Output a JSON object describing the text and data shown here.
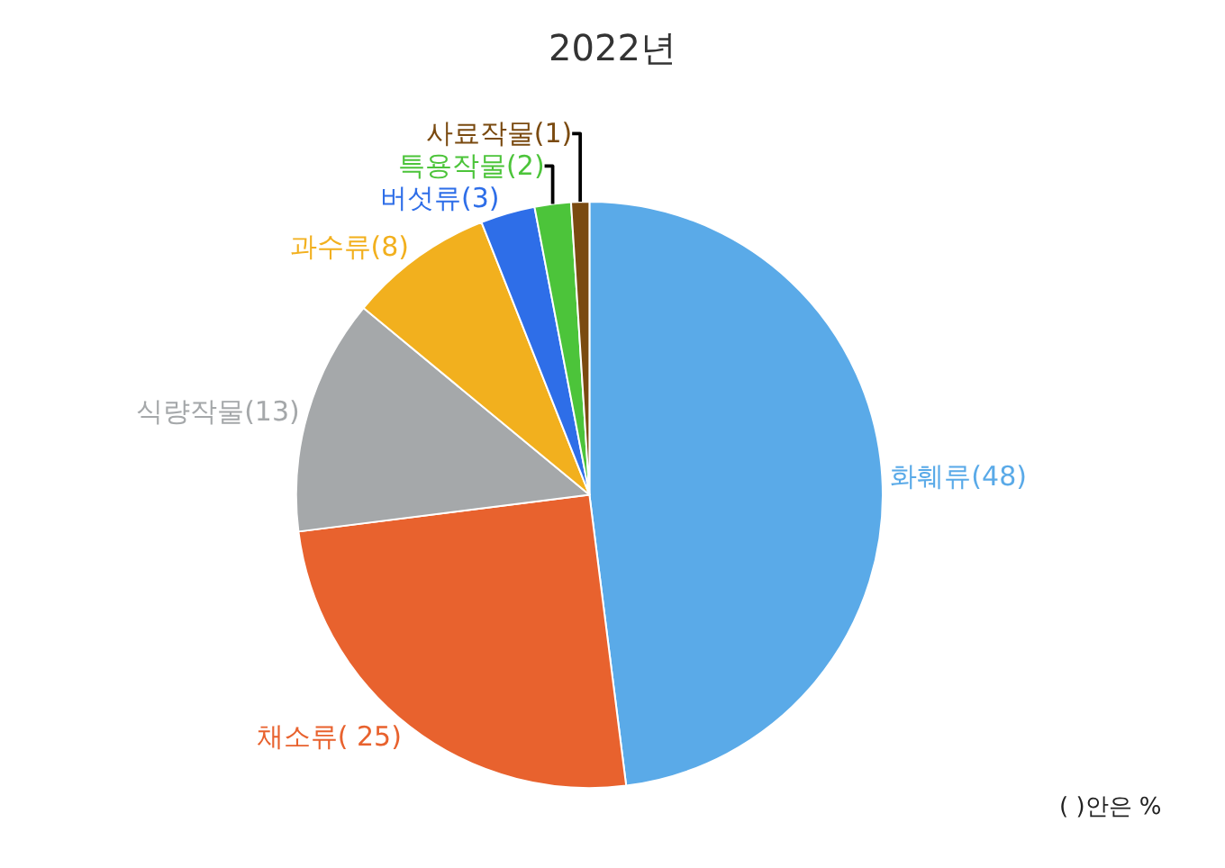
{
  "chart_data": {
    "type": "pie",
    "title": "2022년",
    "categories": [
      "화훼류",
      "채소류",
      "식량작물",
      "과수류",
      "버섯류",
      "특용작물",
      "사료작물"
    ],
    "values": [
      48,
      25,
      13,
      8,
      3,
      2,
      1
    ],
    "value_labels": [
      "(48)",
      "( 25)",
      "(13)",
      "(8)",
      "(3)",
      "(2)",
      "(1)"
    ],
    "colors": [
      "#5aaae8",
      "#e8622e",
      "#a5a8aa",
      "#f2b01e",
      "#2e6ee8",
      "#4cc43a",
      "#7a4a10"
    ],
    "legend": false,
    "annotations": [
      "( )안은 %"
    ]
  }
}
